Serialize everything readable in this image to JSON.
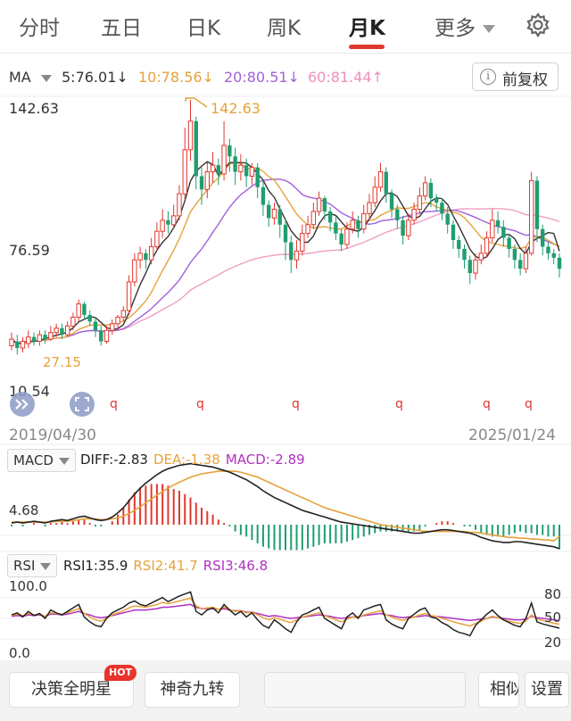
{
  "tabs": [
    {
      "label": "分时"
    },
    {
      "label": "五日"
    },
    {
      "label": "日K"
    },
    {
      "label": "周K"
    },
    {
      "label": "月K"
    },
    {
      "label": "更多"
    }
  ],
  "active_tab": "月K",
  "ma": {
    "label": "MA",
    "ma5": "5:76.01↓",
    "ma10": "10:78.56↓",
    "ma20": "20:80.51↓",
    "ma60": "60:81.44↑"
  },
  "adjust_button": "前复权",
  "info_glyph": "i",
  "colors": {
    "up": "#e0382e",
    "down": "#1f9e6e",
    "ma5": "#333333",
    "ma10": "#e6a23c",
    "ma20": "#a260d8",
    "ma60": "#ef9fc4"
  },
  "chart_data": {
    "type": "candlestick",
    "price_axis": {
      "max_label": "142.63",
      "mid_label": "76.59",
      "min_label": "10.54",
      "ylim": [
        10.54,
        142.63
      ]
    },
    "high_annotation": "142.63",
    "low_annotation": "27.15",
    "start_date": "2019/04/30",
    "end_date": "2025/01/24",
    "q_markers": [
      "q",
      "q",
      "q",
      "q",
      "q",
      "q"
    ],
    "candles": [
      {
        "o": 31,
        "c": 34,
        "h": 37,
        "l": 29
      },
      {
        "o": 33,
        "c": 30,
        "h": 36,
        "l": 27
      },
      {
        "o": 30,
        "c": 33,
        "h": 35,
        "l": 28
      },
      {
        "o": 32,
        "c": 35,
        "h": 38,
        "l": 30
      },
      {
        "o": 35,
        "c": 33,
        "h": 37,
        "l": 31
      },
      {
        "o": 33,
        "c": 36,
        "h": 38,
        "l": 31
      },
      {
        "o": 36,
        "c": 34,
        "h": 38,
        "l": 32
      },
      {
        "o": 34,
        "c": 37,
        "h": 40,
        "l": 33
      },
      {
        "o": 37,
        "c": 39,
        "h": 41,
        "l": 35
      },
      {
        "o": 39,
        "c": 36,
        "h": 41,
        "l": 34
      },
      {
        "o": 36,
        "c": 40,
        "h": 42,
        "l": 35
      },
      {
        "o": 40,
        "c": 44,
        "h": 46,
        "l": 38
      },
      {
        "o": 44,
        "c": 50,
        "h": 52,
        "l": 42
      },
      {
        "o": 50,
        "c": 45,
        "h": 51,
        "l": 43
      },
      {
        "o": 45,
        "c": 42,
        "h": 47,
        "l": 40
      },
      {
        "o": 42,
        "c": 38,
        "h": 44,
        "l": 35
      },
      {
        "o": 38,
        "c": 33,
        "h": 40,
        "l": 31
      },
      {
        "o": 33,
        "c": 38,
        "h": 40,
        "l": 32
      },
      {
        "o": 38,
        "c": 41,
        "h": 43,
        "l": 36
      },
      {
        "o": 41,
        "c": 44,
        "h": 45,
        "l": 38
      },
      {
        "o": 44,
        "c": 47,
        "h": 49,
        "l": 42
      },
      {
        "o": 47,
        "c": 60,
        "h": 63,
        "l": 45
      },
      {
        "o": 60,
        "c": 70,
        "h": 73,
        "l": 58
      },
      {
        "o": 70,
        "c": 73,
        "h": 76,
        "l": 66
      },
      {
        "o": 73,
        "c": 70,
        "h": 75,
        "l": 66
      },
      {
        "o": 70,
        "c": 76,
        "h": 80,
        "l": 68
      },
      {
        "o": 76,
        "c": 83,
        "h": 87,
        "l": 74
      },
      {
        "o": 83,
        "c": 88,
        "h": 93,
        "l": 80
      },
      {
        "o": 88,
        "c": 86,
        "h": 92,
        "l": 82
      },
      {
        "o": 86,
        "c": 90,
        "h": 95,
        "l": 84
      },
      {
        "o": 90,
        "c": 100,
        "h": 104,
        "l": 88
      },
      {
        "o": 100,
        "c": 120,
        "h": 130,
        "l": 97
      },
      {
        "o": 120,
        "c": 133,
        "h": 142.63,
        "l": 115
      },
      {
        "o": 133,
        "c": 108,
        "h": 135,
        "l": 102
      },
      {
        "o": 108,
        "c": 102,
        "h": 112,
        "l": 95
      },
      {
        "o": 102,
        "c": 110,
        "h": 114,
        "l": 98
      },
      {
        "o": 110,
        "c": 113,
        "h": 119,
        "l": 105
      },
      {
        "o": 113,
        "c": 109,
        "h": 116,
        "l": 104
      },
      {
        "o": 109,
        "c": 122,
        "h": 133,
        "l": 106
      },
      {
        "o": 122,
        "c": 117,
        "h": 125,
        "l": 110
      },
      {
        "o": 117,
        "c": 110,
        "h": 121,
        "l": 104
      },
      {
        "o": 110,
        "c": 113,
        "h": 118,
        "l": 106
      },
      {
        "o": 113,
        "c": 108,
        "h": 116,
        "l": 103
      },
      {
        "o": 108,
        "c": 112,
        "h": 114,
        "l": 104
      },
      {
        "o": 112,
        "c": 103,
        "h": 114,
        "l": 98
      },
      {
        "o": 103,
        "c": 95,
        "h": 106,
        "l": 90
      },
      {
        "o": 95,
        "c": 89,
        "h": 97,
        "l": 85
      },
      {
        "o": 89,
        "c": 93,
        "h": 96,
        "l": 86
      },
      {
        "o": 93,
        "c": 86,
        "h": 95,
        "l": 80
      },
      {
        "o": 86,
        "c": 78,
        "h": 89,
        "l": 70
      },
      {
        "o": 78,
        "c": 70,
        "h": 81,
        "l": 64
      },
      {
        "o": 70,
        "c": 74,
        "h": 79,
        "l": 66
      },
      {
        "o": 74,
        "c": 82,
        "h": 86,
        "l": 72
      },
      {
        "o": 82,
        "c": 86,
        "h": 90,
        "l": 80
      },
      {
        "o": 86,
        "c": 92,
        "h": 96,
        "l": 84
      },
      {
        "o": 92,
        "c": 98,
        "h": 101,
        "l": 90
      },
      {
        "o": 98,
        "c": 92,
        "h": 99,
        "l": 88
      },
      {
        "o": 92,
        "c": 87,
        "h": 94,
        "l": 83
      },
      {
        "o": 87,
        "c": 82,
        "h": 90,
        "l": 79
      },
      {
        "o": 82,
        "c": 77,
        "h": 84,
        "l": 74
      },
      {
        "o": 77,
        "c": 84,
        "h": 87,
        "l": 75
      },
      {
        "o": 84,
        "c": 88,
        "h": 92,
        "l": 82
      },
      {
        "o": 88,
        "c": 84,
        "h": 90,
        "l": 80
      },
      {
        "o": 84,
        "c": 91,
        "h": 95,
        "l": 82
      },
      {
        "o": 91,
        "c": 96,
        "h": 100,
        "l": 88
      },
      {
        "o": 96,
        "c": 103,
        "h": 108,
        "l": 94
      },
      {
        "o": 103,
        "c": 110,
        "h": 114,
        "l": 101
      },
      {
        "o": 110,
        "c": 100,
        "h": 112,
        "l": 96
      },
      {
        "o": 100,
        "c": 93,
        "h": 102,
        "l": 89
      },
      {
        "o": 93,
        "c": 88,
        "h": 95,
        "l": 84
      },
      {
        "o": 88,
        "c": 81,
        "h": 90,
        "l": 77
      },
      {
        "o": 81,
        "c": 88,
        "h": 91,
        "l": 79
      },
      {
        "o": 88,
        "c": 93,
        "h": 96,
        "l": 86
      },
      {
        "o": 93,
        "c": 99,
        "h": 103,
        "l": 91
      },
      {
        "o": 99,
        "c": 105,
        "h": 108,
        "l": 97
      },
      {
        "o": 105,
        "c": 98,
        "h": 107,
        "l": 94
      },
      {
        "o": 98,
        "c": 96,
        "h": 100,
        "l": 92
      },
      {
        "o": 96,
        "c": 91,
        "h": 98,
        "l": 88
      },
      {
        "o": 91,
        "c": 86,
        "h": 94,
        "l": 82
      },
      {
        "o": 86,
        "c": 79,
        "h": 88,
        "l": 75
      },
      {
        "o": 79,
        "c": 75,
        "h": 81,
        "l": 71
      },
      {
        "o": 75,
        "c": 70,
        "h": 77,
        "l": 66
      },
      {
        "o": 70,
        "c": 64,
        "h": 72,
        "l": 59
      },
      {
        "o": 64,
        "c": 70,
        "h": 73,
        "l": 61
      },
      {
        "o": 70,
        "c": 73,
        "h": 77,
        "l": 68
      },
      {
        "o": 73,
        "c": 80,
        "h": 83,
        "l": 71
      },
      {
        "o": 80,
        "c": 88,
        "h": 93,
        "l": 78
      },
      {
        "o": 88,
        "c": 85,
        "h": 92,
        "l": 82
      },
      {
        "o": 85,
        "c": 80,
        "h": 88,
        "l": 76
      },
      {
        "o": 80,
        "c": 75,
        "h": 82,
        "l": 71
      },
      {
        "o": 75,
        "c": 70,
        "h": 77,
        "l": 66
      },
      {
        "o": 70,
        "c": 66,
        "h": 73,
        "l": 63
      },
      {
        "o": 66,
        "c": 73,
        "h": 76,
        "l": 64
      },
      {
        "o": 73,
        "c": 106,
        "h": 110,
        "l": 72
      },
      {
        "o": 106,
        "c": 84,
        "h": 108,
        "l": 78
      },
      {
        "o": 84,
        "c": 76,
        "h": 86,
        "l": 72
      },
      {
        "o": 76,
        "c": 73,
        "h": 78,
        "l": 70
      },
      {
        "o": 73,
        "c": 71,
        "h": 75,
        "l": 68
      },
      {
        "o": 71,
        "c": 66,
        "h": 73,
        "l": 62
      }
    ],
    "macd": {
      "label": "MACD",
      "diff_label": "DIFF:-2.83",
      "dea_label": "DEA:-1.38",
      "macd_label": "MACD:-2.89",
      "axis_label": "4.68",
      "diff": [
        0.2,
        0.3,
        0.2,
        0.3,
        0.4,
        0.3,
        0.2,
        0.4,
        0.5,
        0.6,
        0.5,
        0.7,
        0.9,
        1.0,
        0.8,
        0.6,
        0.5,
        0.6,
        0.9,
        1.4,
        2.0,
        2.8,
        3.6,
        4.3,
        4.9,
        5.4,
        5.9,
        6.3,
        6.6,
        6.8,
        7.0,
        7.1,
        7.2,
        7.1,
        7.0,
        6.9,
        6.8,
        6.6,
        6.4,
        6.2,
        5.9,
        5.6,
        5.3,
        4.9,
        4.5,
        4.0,
        3.6,
        3.2,
        2.9,
        2.6,
        2.3,
        2.0,
        1.7,
        1.5,
        1.3,
        1.1,
        0.9,
        0.7,
        0.5,
        0.3,
        0.2,
        0.1,
        0.0,
        -0.1,
        -0.2,
        -0.3,
        -0.4,
        -0.5,
        -0.6,
        -0.7,
        -0.8,
        -0.9,
        -1.0,
        -1.0,
        -0.9,
        -0.8,
        -0.7,
        -0.6,
        -0.6,
        -0.7,
        -0.8,
        -0.9,
        -1.0,
        -1.2,
        -1.5,
        -1.7,
        -1.9,
        -2.0,
        -2.1,
        -2.1,
        -2.0,
        -2.0,
        -2.1,
        -2.2,
        -2.3,
        -2.4,
        -2.5,
        -2.6,
        -2.83
      ],
      "dea": [
        0.3,
        0.3,
        0.3,
        0.3,
        0.3,
        0.3,
        0.3,
        0.3,
        0.4,
        0.4,
        0.4,
        0.5,
        0.6,
        0.7,
        0.7,
        0.7,
        0.6,
        0.6,
        0.7,
        0.8,
        1.0,
        1.3,
        1.7,
        2.1,
        2.6,
        3.0,
        3.5,
        3.9,
        4.3,
        4.7,
        5.0,
        5.3,
        5.6,
        5.8,
        6.0,
        6.1,
        6.2,
        6.3,
        6.3,
        6.3,
        6.3,
        6.2,
        6.0,
        5.8,
        5.6,
        5.3,
        5.0,
        4.7,
        4.4,
        4.1,
        3.8,
        3.5,
        3.2,
        2.9,
        2.6,
        2.3,
        2.0,
        1.8,
        1.6,
        1.4,
        1.2,
        1.0,
        0.8,
        0.6,
        0.4,
        0.2,
        0.0,
        -0.1,
        -0.2,
        -0.3,
        -0.4,
        -0.5,
        -0.6,
        -0.7,
        -0.8,
        -0.8,
        -0.8,
        -0.8,
        -0.8,
        -0.8,
        -0.8,
        -0.8,
        -0.9,
        -0.9,
        -1.0,
        -1.1,
        -1.2,
        -1.3,
        -1.4,
        -1.5,
        -1.5,
        -1.6,
        -1.6,
        -1.7,
        -1.7,
        -1.8,
        -1.8,
        -1.9,
        -1.38
      ]
    },
    "rsi": {
      "label": "RSI",
      "rsi1_label": "RSI1:35.9",
      "rsi2_label": "RSI2:41.7",
      "rsi3_label": "RSI3:46.8",
      "left_max": "100.0",
      "left_min": "0.0",
      "right_labels": [
        "80",
        "50",
        "20"
      ],
      "rsi1": [
        55,
        58,
        52,
        60,
        54,
        57,
        50,
        62,
        58,
        55,
        60,
        65,
        70,
        52,
        45,
        40,
        38,
        50,
        58,
        62,
        66,
        72,
        75,
        70,
        68,
        72,
        76,
        80,
        74,
        78,
        82,
        85,
        88,
        60,
        55,
        62,
        65,
        58,
        70,
        62,
        55,
        60,
        52,
        58,
        48,
        40,
        36,
        48,
        42,
        35,
        30,
        45,
        55,
        58,
        62,
        66,
        50,
        45,
        40,
        35,
        52,
        58,
        50,
        62,
        65,
        68,
        70,
        48,
        42,
        38,
        35,
        50,
        56,
        62,
        65,
        52,
        50,
        44,
        40,
        34,
        30,
        28,
        25,
        40,
        48,
        56,
        62,
        54,
        48,
        44,
        40,
        38,
        50,
        72,
        45,
        42,
        40,
        38,
        35.9
      ],
      "rsi2": [
        54,
        56,
        54,
        57,
        55,
        56,
        53,
        58,
        57,
        56,
        58,
        61,
        64,
        57,
        52,
        48,
        46,
        50,
        55,
        58,
        61,
        65,
        68,
        67,
        66,
        68,
        70,
        73,
        71,
        73,
        75,
        77,
        79,
        68,
        64,
        65,
        66,
        63,
        66,
        63,
        60,
        61,
        58,
        59,
        55,
        51,
        48,
        51,
        49,
        46,
        44,
        48,
        52,
        54,
        56,
        58,
        54,
        51,
        48,
        45,
        49,
        52,
        51,
        55,
        57,
        59,
        61,
        55,
        52,
        49,
        47,
        50,
        52,
        55,
        57,
        54,
        53,
        50,
        48,
        45,
        43,
        41,
        39,
        43,
        46,
        50,
        53,
        51,
        48,
        46,
        44,
        43,
        46,
        55,
        49,
        47,
        45,
        43,
        41.7
      ],
      "rsi3": [
        53,
        54,
        53,
        55,
        54,
        55,
        53,
        56,
        56,
        55,
        56,
        58,
        60,
        57,
        55,
        52,
        51,
        52,
        54,
        56,
        58,
        60,
        62,
        62,
        62,
        63,
        64,
        66,
        66,
        67,
        68,
        69,
        70,
        66,
        64,
        64,
        64,
        63,
        64,
        62,
        61,
        61,
        59,
        59,
        57,
        55,
        53,
        54,
        53,
        51,
        50,
        51,
        52,
        53,
        54,
        55,
        54,
        53,
        51,
        50,
        51,
        52,
        52,
        54,
        55,
        56,
        57,
        55,
        54,
        52,
        51,
        52,
        52,
        53,
        54,
        53,
        53,
        52,
        51,
        50,
        49,
        48,
        47,
        48,
        49,
        50,
        52,
        51,
        50,
        49,
        48,
        48,
        49,
        53,
        51,
        50,
        49,
        48,
        46.8
      ]
    }
  },
  "bottom": {
    "btn1": "决策全明星",
    "hot": "HOT",
    "btn2": "神奇九转",
    "btn3": "",
    "btn4": "相似K线",
    "btn5": "设置"
  }
}
